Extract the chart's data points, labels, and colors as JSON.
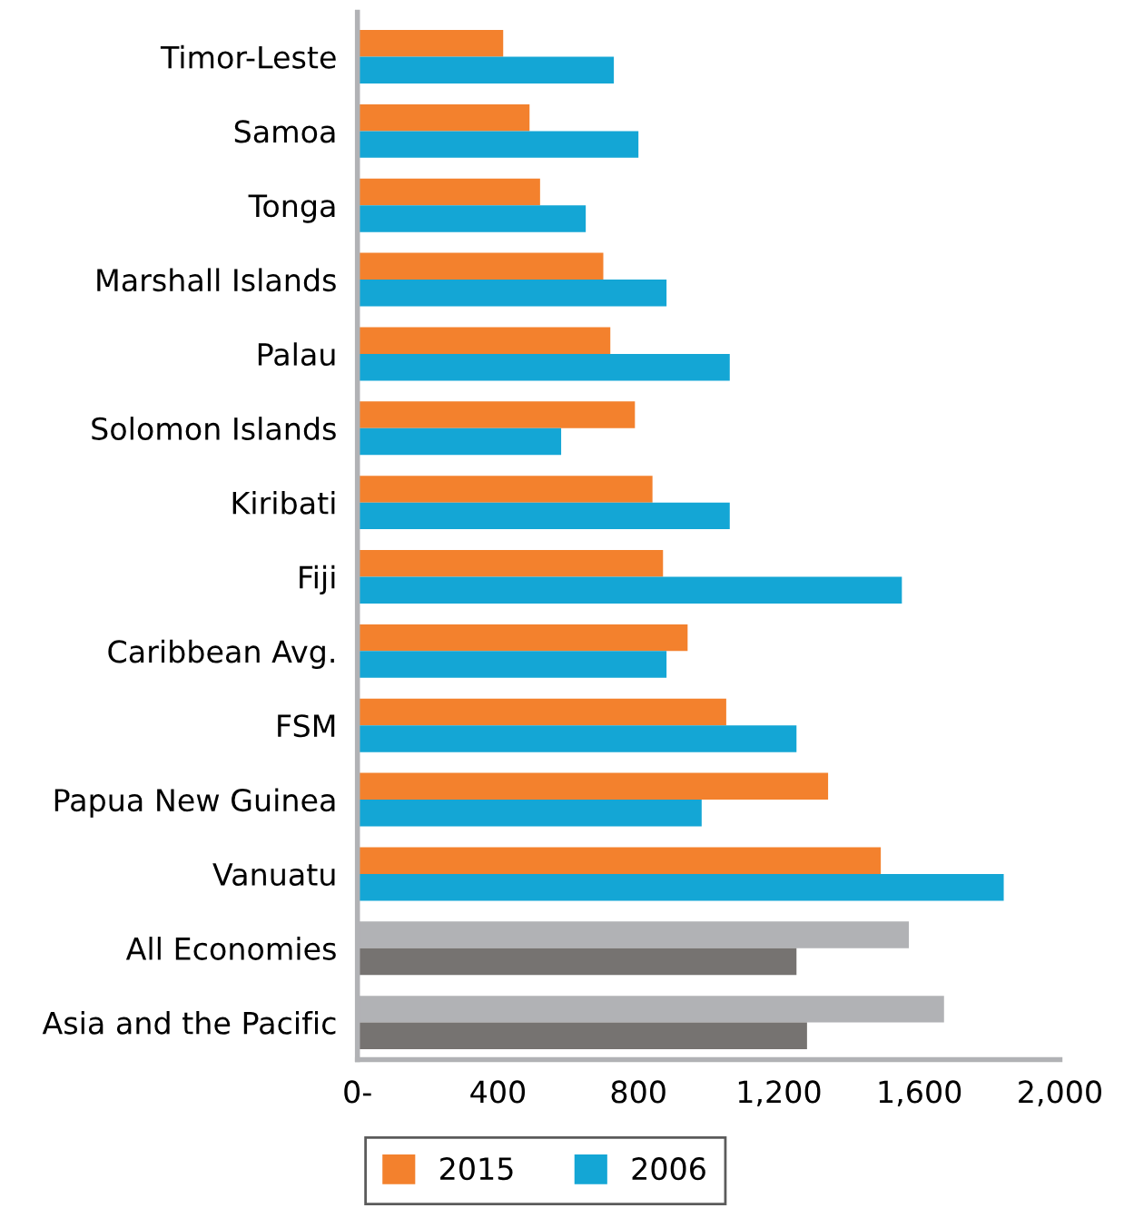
{
  "chart_data": {
    "type": "bar",
    "orientation": "horizontal",
    "categories": [
      "Timor-Leste",
      "Samoa",
      "Tonga",
      "Marshall Islands",
      "Palau",
      "Solomon Islands",
      "Kiribati",
      "Fiji",
      "Caribbean Avg.",
      "FSM",
      "Papua New Guinea",
      "Vanuatu",
      "All Economies",
      "Asia and the Pacific"
    ],
    "series": [
      {
        "name": "2015",
        "color": "#f3812d",
        "colors": [
          "#f3812d",
          "#f3812d",
          "#f3812d",
          "#f3812d",
          "#f3812d",
          "#f3812d",
          "#f3812d",
          "#f3812d",
          "#f3812d",
          "#f3812d",
          "#f3812d",
          "#f3812d",
          "#b1b2b5",
          "#b1b2b5"
        ],
        "values": [
          415,
          490,
          520,
          700,
          720,
          790,
          840,
          870,
          940,
          1050,
          1340,
          1490,
          1570,
          1670
        ]
      },
      {
        "name": "2006",
        "color": "#14a6d5",
        "colors": [
          "#14a6d5",
          "#14a6d5",
          "#14a6d5",
          "#14a6d5",
          "#14a6d5",
          "#14a6d5",
          "#14a6d5",
          "#14a6d5",
          "#14a6d5",
          "#14a6d5",
          "#14a6d5",
          "#14a6d5",
          "#767371",
          "#767371"
        ],
        "values": [
          730,
          800,
          650,
          880,
          1060,
          580,
          1060,
          1550,
          880,
          1250,
          980,
          1840,
          1250,
          1280
        ]
      }
    ],
    "xlim": [
      0,
      2000
    ],
    "xticks": [
      {
        "value": 0,
        "label": "0-"
      },
      400,
      800,
      {
        "value": 1200,
        "label": "1,200"
      },
      {
        "value": 1600,
        "label": "1,600"
      },
      {
        "value": 2000,
        "label": "2,000"
      }
    ],
    "grid": false,
    "legend": "bottom"
  }
}
